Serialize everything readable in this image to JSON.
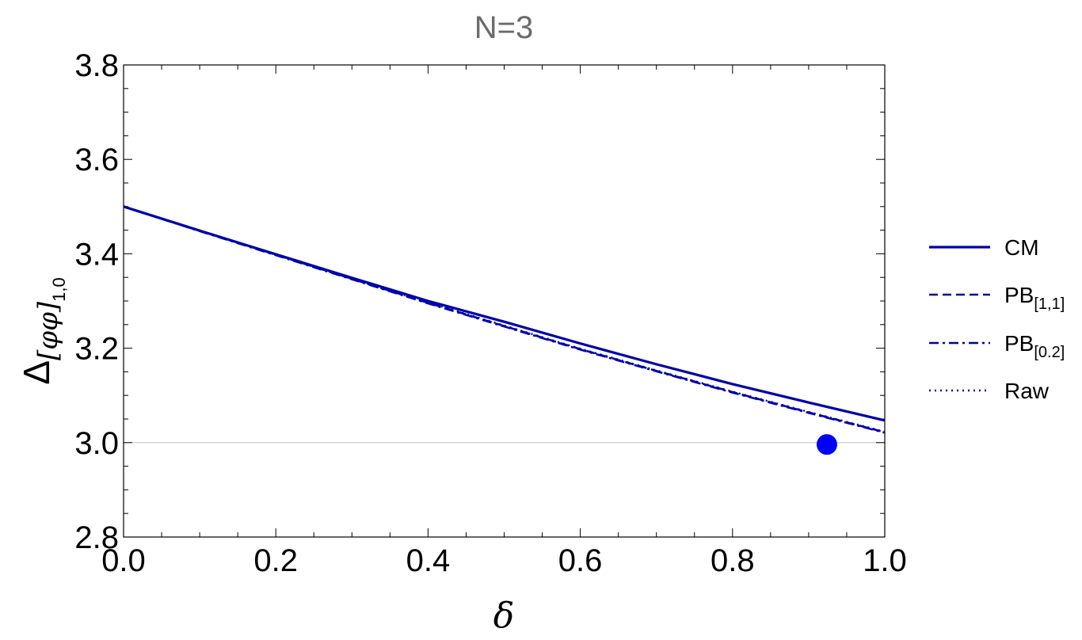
{
  "chart_data": {
    "type": "line",
    "title": "N=3",
    "xlabel": "δ",
    "ylabel": {
      "main": "Δ",
      "sub": "[φφ]",
      "subsub": "1,0"
    },
    "xlim": [
      0.0,
      1.0
    ],
    "ylim": [
      2.8,
      3.8
    ],
    "x_ticks": [
      "0.0",
      "0.2",
      "0.4",
      "0.6",
      "0.8",
      "1.0"
    ],
    "y_ticks": [
      "2.8",
      "3.0",
      "3.2",
      "3.4",
      "3.6",
      "3.8"
    ],
    "reference_line": {
      "y": 3.0
    },
    "legend_position": "right",
    "series": [
      {
        "name": "CM",
        "sub": "",
        "style": "solid",
        "color": "#0000aa",
        "x": [
          0.0,
          0.1,
          0.2,
          0.3,
          0.4,
          0.5,
          0.6,
          0.7,
          0.8,
          0.9,
          1.0
        ],
        "y": [
          3.5,
          3.449,
          3.399,
          3.349,
          3.3,
          3.256,
          3.21,
          3.166,
          3.124,
          3.085,
          3.047
        ]
      },
      {
        "name": "PB",
        "sub": "[1,1]",
        "style": "dashed",
        "color": "#0000aa",
        "x": [
          0.0,
          0.1,
          0.2,
          0.3,
          0.4,
          0.5,
          0.6,
          0.7,
          0.8,
          0.9,
          1.0
        ],
        "y": [
          3.5,
          3.449,
          3.398,
          3.347,
          3.296,
          3.247,
          3.198,
          3.152,
          3.107,
          3.064,
          3.022
        ]
      },
      {
        "name": "PB",
        "sub": "[0.2]",
        "style": "dashdot",
        "color": "#0000aa",
        "x": [
          0.0,
          0.1,
          0.2,
          0.3,
          0.4,
          0.5,
          0.6,
          0.7,
          0.8,
          0.9,
          1.0
        ],
        "y": [
          3.5,
          3.448,
          3.397,
          3.346,
          3.295,
          3.246,
          3.197,
          3.151,
          3.106,
          3.063,
          3.021
        ]
      },
      {
        "name": "Raw",
        "sub": "",
        "style": "dotted",
        "color": "#0000aa",
        "x": [
          0.0,
          0.1,
          0.2,
          0.3,
          0.4,
          0.5,
          0.6,
          0.7,
          0.8,
          0.9,
          1.0
        ],
        "y": [
          3.5,
          3.449,
          3.398,
          3.347,
          3.297,
          3.248,
          3.199,
          3.153,
          3.108,
          3.065,
          3.023
        ]
      }
    ],
    "points": [
      {
        "x": 0.924,
        "y": 2.996,
        "color": "#0000ff"
      }
    ]
  }
}
